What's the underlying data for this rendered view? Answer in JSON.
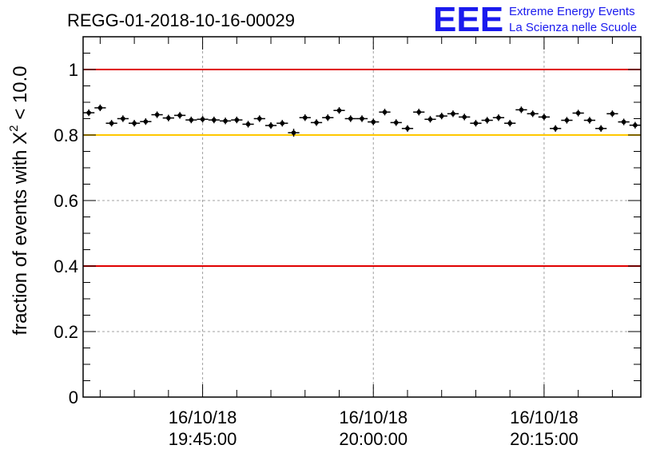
{
  "chart_data": {
    "type": "scatter",
    "title": "REGG-01-2018-10-16-00029",
    "ylabel": "fraction of events with X",
    "ylabel_superscript": "2",
    "ylabel_suffix": " < 10.0",
    "xlabel": "",
    "ylim": [
      0,
      1.1
    ],
    "y_ticks": [
      0,
      0.2,
      0.4,
      0.6,
      0.8,
      1
    ],
    "y_tick_labels": [
      "0",
      "0.2",
      "0.4",
      "0.6",
      "0.8",
      "1"
    ],
    "x_range_minutes": [
      -10.5,
      38.5
    ],
    "x_ticks": [
      {
        "minutes": 0,
        "date": "16/10/18",
        "time": "19:45:00"
      },
      {
        "minutes": 15,
        "date": "16/10/18",
        "time": "20:00:00"
      },
      {
        "minutes": 30,
        "date": "16/10/18",
        "time": "20:15:00"
      }
    ],
    "grid": true,
    "reference_lines": [
      {
        "y": 1.0,
        "color": "#e00000"
      },
      {
        "y": 0.8,
        "color": "#ffc800"
      },
      {
        "y": 0.4,
        "color": "#e00000"
      }
    ],
    "point_color": "#000000",
    "x_halfwidth_minutes": 0.5,
    "series": [
      {
        "x": [
          -10,
          -9,
          -8,
          -7,
          -6,
          -5,
          -4,
          -3,
          -2,
          -1,
          0,
          1,
          2,
          3,
          4,
          5,
          6,
          7,
          8,
          9,
          10,
          11,
          12,
          13,
          14,
          15,
          16,
          17,
          18,
          19,
          20,
          21,
          22,
          23,
          24,
          25,
          26,
          27,
          28,
          29,
          30,
          31,
          32,
          33,
          34,
          35,
          36,
          37,
          38
        ],
        "values": [
          0.868,
          0.883,
          0.836,
          0.85,
          0.836,
          0.841,
          0.862,
          0.852,
          0.86,
          0.846,
          0.848,
          0.846,
          0.843,
          0.846,
          0.833,
          0.85,
          0.829,
          0.836,
          0.807,
          0.853,
          0.838,
          0.853,
          0.875,
          0.85,
          0.85,
          0.84,
          0.87,
          0.838,
          0.82,
          0.87,
          0.848,
          0.858,
          0.865,
          0.855,
          0.836,
          0.845,
          0.853,
          0.836,
          0.877,
          0.865,
          0.855,
          0.82,
          0.845,
          0.867,
          0.845,
          0.82,
          0.865,
          0.84,
          0.83
        ],
        "errors": [
          0.01,
          0.01,
          0.01,
          0.01,
          0.01,
          0.01,
          0.01,
          0.01,
          0.01,
          0.01,
          0.01,
          0.01,
          0.01,
          0.01,
          0.01,
          0.01,
          0.01,
          0.01,
          0.012,
          0.01,
          0.01,
          0.01,
          0.01,
          0.01,
          0.01,
          0.01,
          0.01,
          0.01,
          0.01,
          0.01,
          0.01,
          0.01,
          0.01,
          0.01,
          0.01,
          0.01,
          0.01,
          0.01,
          0.01,
          0.01,
          0.01,
          0.01,
          0.01,
          0.01,
          0.01,
          0.01,
          0.01,
          0.01,
          0.01
        ]
      }
    ]
  },
  "logo": {
    "big": "EEE",
    "line1": "Extreme Energy Events",
    "line2": "La Scienza nelle Scuole"
  }
}
